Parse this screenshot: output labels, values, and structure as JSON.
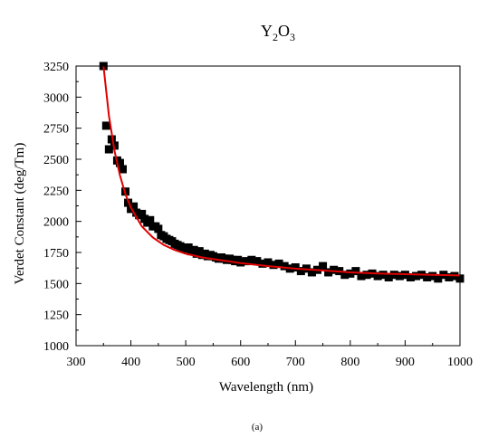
{
  "chart_data": {
    "type": "scatter",
    "title": "Y",
    "title_sub1": "2",
    "title_mid": "O",
    "title_sub2": "3",
    "xlabel": "Wavelength (nm)",
    "ylabel": "Verdet Constant (deg/Tm)",
    "caption": "(a)",
    "xlim": [
      300,
      1000
    ],
    "ylim": [
      1000,
      3250
    ],
    "xticks": [
      300,
      400,
      500,
      600,
      700,
      800,
      900,
      1000
    ],
    "yticks": [
      1000,
      1250,
      1500,
      1750,
      2000,
      2250,
      2500,
      2750,
      3000,
      3250
    ],
    "grid": false,
    "legend": "none",
    "marker_color": "#000000",
    "fit_color": "#e00000",
    "series": [
      {
        "kind": "measured points",
        "x": [
          350,
          355,
          360,
          365,
          370,
          375,
          380,
          385,
          390,
          395,
          400,
          405,
          410,
          415,
          420,
          425,
          430,
          435,
          440,
          445,
          450,
          455,
          460,
          465,
          470,
          475,
          480,
          485,
          490,
          495,
          500,
          505,
          510,
          515,
          520,
          525,
          530,
          535,
          540,
          545,
          550,
          555,
          560,
          565,
          570,
          575,
          580,
          585,
          590,
          595,
          600,
          610,
          620,
          630,
          640,
          650,
          660,
          670,
          680,
          690,
          700,
          710,
          720,
          730,
          740,
          750,
          760,
          770,
          780,
          790,
          800,
          810,
          820,
          830,
          840,
          850,
          860,
          870,
          880,
          890,
          900,
          910,
          920,
          930,
          940,
          950,
          960,
          970,
          980,
          990,
          1000
        ],
        "y": [
          3250,
          2770,
          2580,
          2660,
          2610,
          2490,
          2470,
          2420,
          2240,
          2150,
          2100,
          2120,
          2070,
          2050,
          2060,
          2020,
          1990,
          2010,
          1960,
          1960,
          1940,
          1890,
          1880,
          1860,
          1850,
          1840,
          1820,
          1810,
          1800,
          1790,
          1780,
          1790,
          1760,
          1770,
          1740,
          1760,
          1730,
          1740,
          1720,
          1730,
          1720,
          1710,
          1700,
          1710,
          1700,
          1690,
          1700,
          1690,
          1680,
          1690,
          1670,
          1680,
          1690,
          1680,
          1660,
          1670,
          1650,
          1660,
          1640,
          1620,
          1630,
          1600,
          1620,
          1590,
          1610,
          1640,
          1590,
          1610,
          1600,
          1570,
          1580,
          1600,
          1560,
          1570,
          1580,
          1560,
          1570,
          1550,
          1570,
          1560,
          1570,
          1550,
          1560,
          1570,
          1550,
          1560,
          1540,
          1570,
          1550,
          1560,
          1540
        ]
      },
      {
        "kind": "fitted curve",
        "x": [
          350,
          360,
          370,
          380,
          390,
          400,
          420,
          440,
          460,
          480,
          500,
          530,
          560,
          600,
          650,
          700,
          750,
          800,
          850,
          900,
          950,
          1000
        ],
        "y": [
          3250,
          2850,
          2570,
          2370,
          2220,
          2110,
          1960,
          1870,
          1810,
          1770,
          1740,
          1710,
          1690,
          1665,
          1640,
          1620,
          1605,
          1590,
          1580,
          1575,
          1570,
          1565
        ]
      }
    ]
  }
}
